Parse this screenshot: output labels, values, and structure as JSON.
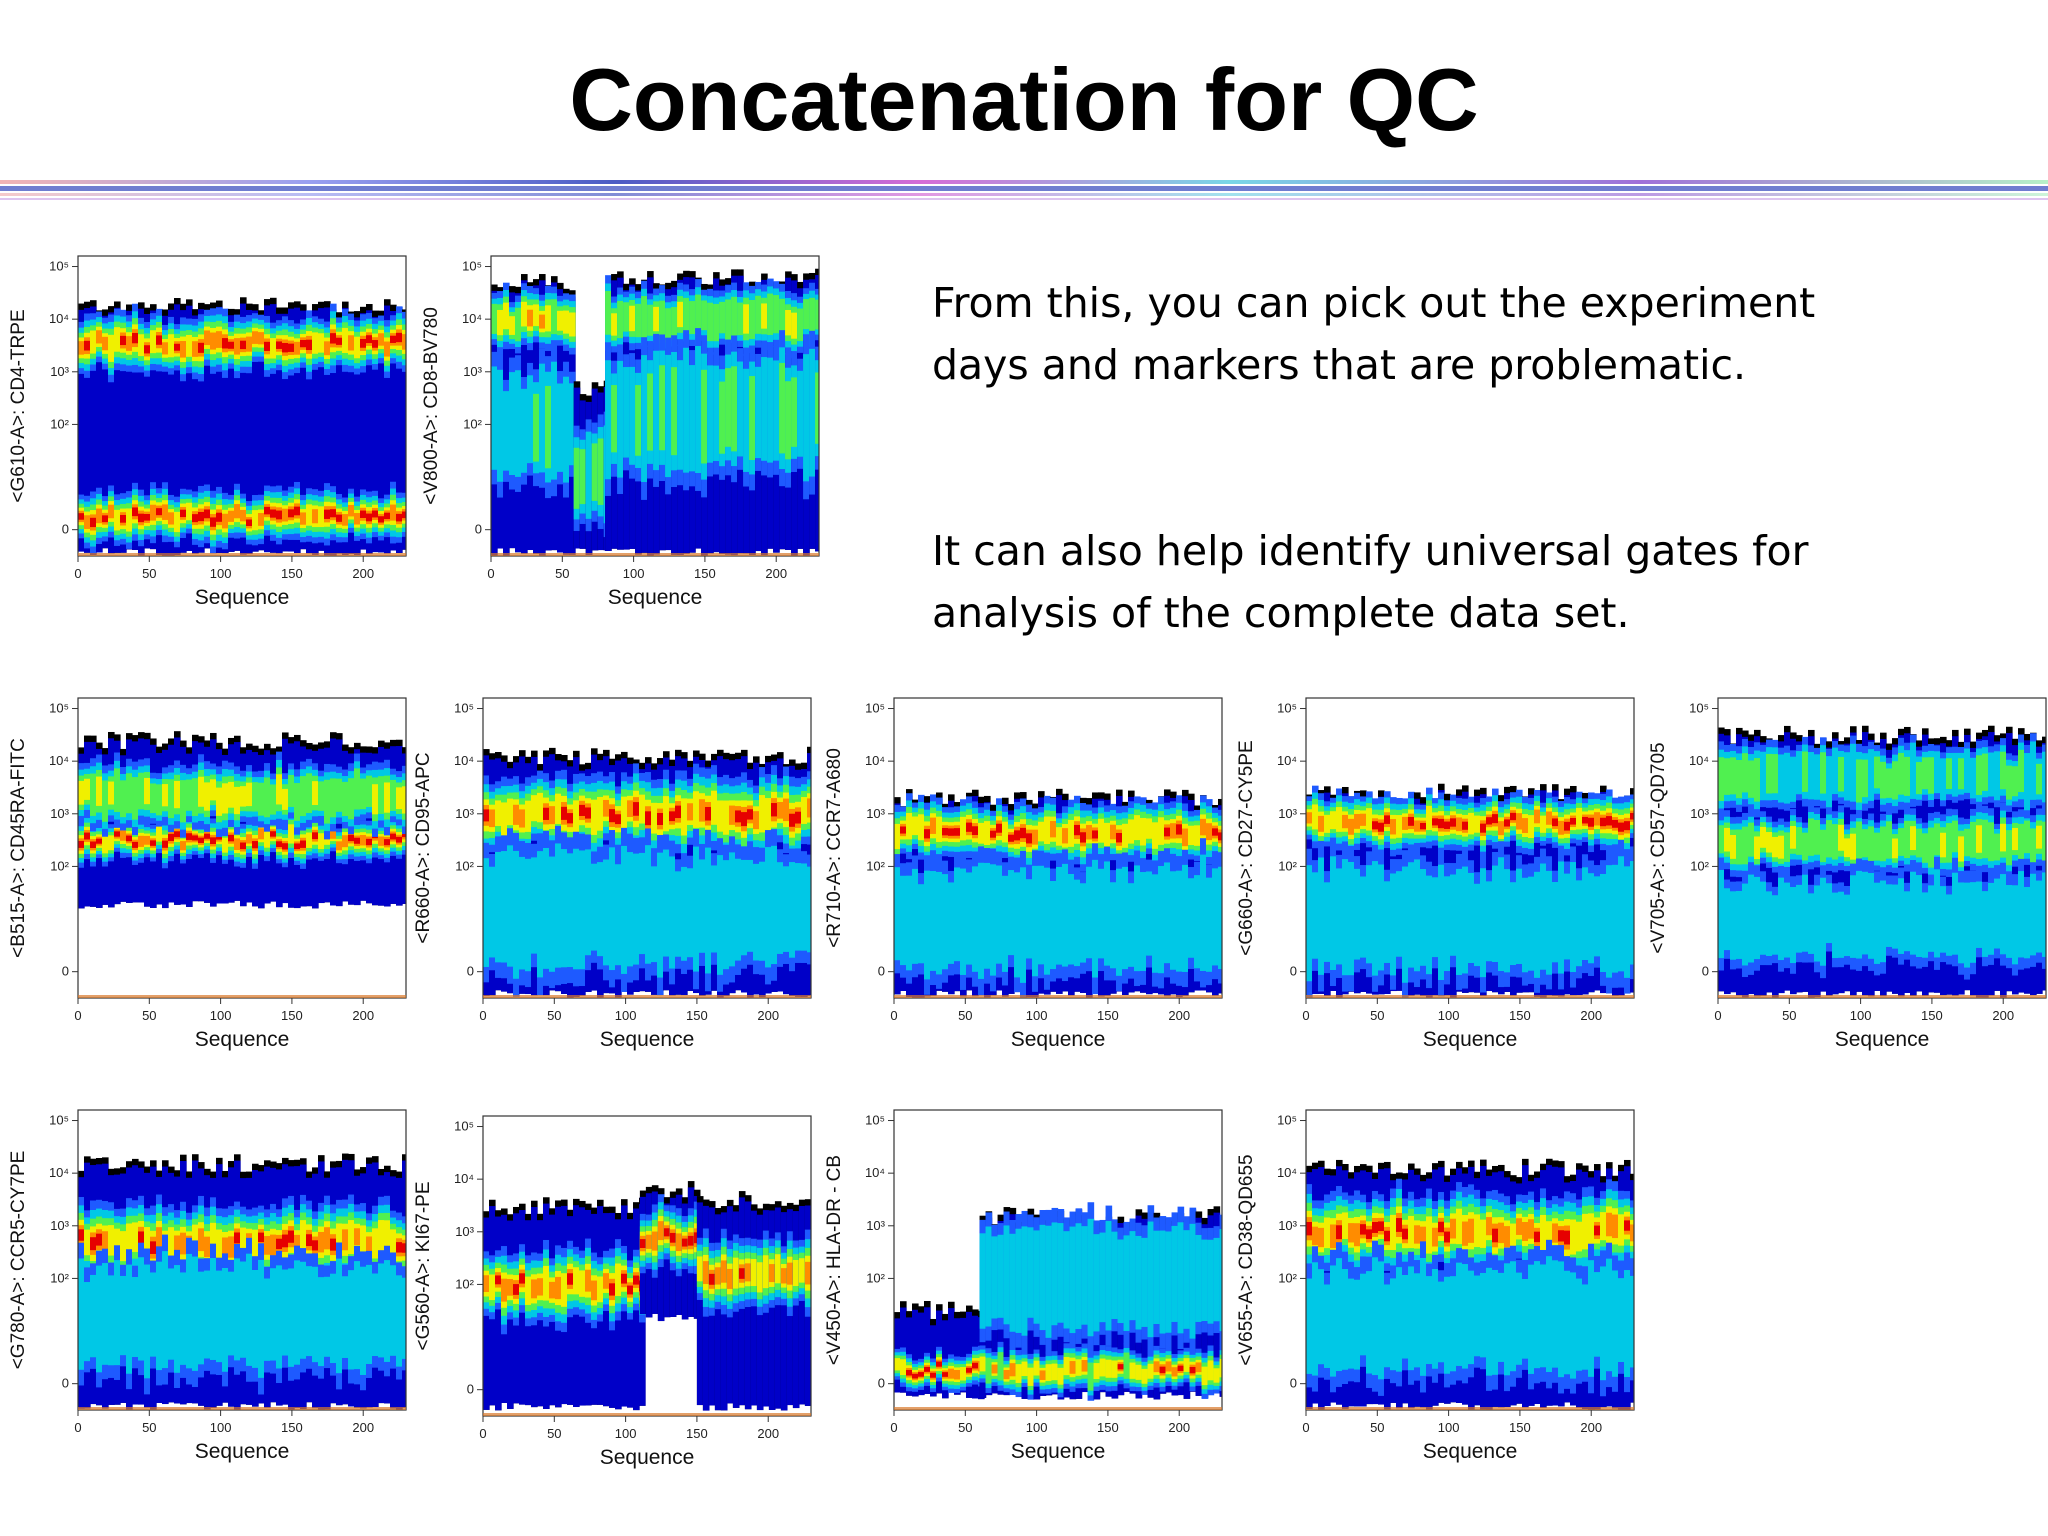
{
  "slide": {
    "title": "Concatenation for QC",
    "text1": "From this, you can pick out the experiment days and markers that are problematic.",
    "text2": "It can also help identify universal gates for analysis of the complete data set."
  },
  "colors": {
    "heat": [
      "#000000",
      "#0000c8",
      "#1e5aff",
      "#00c8e6",
      "#50f050",
      "#f0f000",
      "#ff8c00",
      "#e60000"
    ]
  },
  "chart_data": [
    {
      "type": "heatmap",
      "name": "CD4-TRPE",
      "xlabel": "Sequence",
      "ylabel": "<G610-A>: CD4-TRPE",
      "x_ticks": [
        "0",
        "50",
        "100",
        "150",
        "200"
      ],
      "y_ticks": [
        "0",
        "10²",
        "10³",
        "10⁴",
        "10⁵"
      ],
      "xlim": [
        0,
        230
      ],
      "ylim": [
        -0.5,
        5.2
      ],
      "segments": [
        {
          "x": [
            0,
            230
          ],
          "bands": [
            {
              "y": 3.55,
              "spread": 0.55,
              "peak": 0.95
            },
            {
              "y": 0.25,
              "spread": 0.5,
              "peak": 1.0
            }
          ],
          "top": 4.3,
          "bottom": -0.5
        }
      ]
    },
    {
      "type": "heatmap",
      "name": "CD8-BV780",
      "xlabel": "Sequence",
      "ylabel": "<V800-A>: CD8-BV780",
      "x_ticks": [
        "0",
        "50",
        "100",
        "150",
        "200"
      ],
      "y_ticks": [
        "0",
        "10²",
        "10³",
        "10⁴",
        "10⁵"
      ],
      "xlim": [
        0,
        230
      ],
      "ylim": [
        -0.5,
        5.2
      ],
      "segments": [
        {
          "x": [
            0,
            58
          ],
          "bands": [
            {
              "y": 4.0,
              "spread": 0.55,
              "peak": 0.8
            },
            {
              "y": 2.0,
              "spread": 1.2,
              "peak": 0.45
            }
          ],
          "top": 4.7,
          "bottom": -0.5
        },
        {
          "x": [
            58,
            80
          ],
          "bands": [
            {
              "y": 1.0,
              "spread": 1.0,
              "peak": 0.55
            }
          ],
          "top": 2.7,
          "bottom": -0.5
        },
        {
          "x": [
            80,
            230
          ],
          "bands": [
            {
              "y": 4.0,
              "spread": 0.6,
              "peak": 0.65
            },
            {
              "y": 2.2,
              "spread": 1.3,
              "peak": 0.45
            }
          ],
          "top": 4.8,
          "bottom": -0.5
        }
      ]
    },
    {
      "type": "heatmap",
      "name": "CD45RA-FITC",
      "xlabel": "Sequence",
      "ylabel": "<B515-A>: CD45RA-FITC",
      "x_ticks": [
        "0",
        "50",
        "100",
        "150",
        "200"
      ],
      "y_ticks": [
        "0",
        "10²",
        "10³",
        "10⁴",
        "10⁵"
      ],
      "xlim": [
        0,
        230
      ],
      "ylim": [
        -0.5,
        5.2
      ],
      "segments": [
        {
          "x": [
            0,
            230
          ],
          "bands": [
            {
              "y": 2.5,
              "spread": 0.4,
              "peak": 1.0
            },
            {
              "y": 3.35,
              "spread": 0.6,
              "peak": 0.7
            }
          ],
          "top": 4.4,
          "bottom": 1.2
        }
      ]
    },
    {
      "type": "heatmap",
      "name": "CD95-APC",
      "xlabel": "Sequence",
      "ylabel": "<R660-A>: CD95-APC",
      "x_ticks": [
        "0",
        "50",
        "100",
        "150",
        "200"
      ],
      "y_ticks": [
        "0",
        "10²",
        "10³",
        "10⁴",
        "10⁵"
      ],
      "xlim": [
        0,
        230
      ],
      "ylim": [
        -0.5,
        5.2
      ],
      "segments": [
        {
          "x": [
            0,
            230
          ],
          "bands": [
            {
              "y": 3.0,
              "spread": 0.75,
              "peak": 0.95
            },
            {
              "y": 1.2,
              "spread": 1.3,
              "peak": 0.35
            }
          ],
          "top": 4.1,
          "bottom": -0.5
        }
      ]
    },
    {
      "type": "heatmap",
      "name": "CCR7-A680",
      "xlabel": "Sequence",
      "ylabel": "<R710-A>: CCR7-A680",
      "x_ticks": [
        "0",
        "50",
        "100",
        "150",
        "200"
      ],
      "y_ticks": [
        "0",
        "10²",
        "10³",
        "10⁴",
        "10⁵"
      ],
      "xlim": [
        0,
        230
      ],
      "ylim": [
        -0.5,
        5.2
      ],
      "segments": [
        {
          "x": [
            0,
            230
          ],
          "bands": [
            {
              "y": 2.65,
              "spread": 0.55,
              "peak": 0.9
            },
            {
              "y": 1.0,
              "spread": 1.2,
              "peak": 0.35
            }
          ],
          "top": 3.3,
          "bottom": -0.5
        }
      ]
    },
    {
      "type": "heatmap",
      "name": "CD27-CY5PE",
      "xlabel": "Sequence",
      "ylabel": "<G660-A>: CD27-CY5PE",
      "x_ticks": [
        "0",
        "50",
        "100",
        "150",
        "200"
      ],
      "y_ticks": [
        "0",
        "10²",
        "10³",
        "10⁴",
        "10⁵"
      ],
      "xlim": [
        0,
        230
      ],
      "ylim": [
        -0.5,
        5.2
      ],
      "segments": [
        {
          "x": [
            0,
            230
          ],
          "bands": [
            {
              "y": 2.85,
              "spread": 0.5,
              "peak": 0.95
            },
            {
              "y": 1.0,
              "spread": 1.2,
              "peak": 0.4
            }
          ],
          "top": 3.4,
          "bottom": -0.5
        }
      ]
    },
    {
      "type": "heatmap",
      "name": "CD57-QD705",
      "xlabel": "Sequence",
      "ylabel": "<V705-A>: CD57-QD705",
      "x_ticks": [
        "0",
        "50",
        "100",
        "150",
        "200"
      ],
      "y_ticks": [
        "0",
        "10²",
        "10³",
        "10⁴",
        "10⁵"
      ],
      "xlim": [
        0,
        230
      ],
      "ylim": [
        -0.5,
        5.2
      ],
      "segments": [
        {
          "x": [
            0,
            230
          ],
          "bands": [
            {
              "y": 2.45,
              "spread": 0.55,
              "peak": 0.7
            },
            {
              "y": 3.7,
              "spread": 0.6,
              "peak": 0.5
            },
            {
              "y": 1.0,
              "spread": 0.9,
              "peak": 0.35
            }
          ],
          "top": 4.5,
          "bottom": -0.5
        }
      ]
    },
    {
      "type": "heatmap",
      "name": "CCR5-CY7PE",
      "xlabel": "Sequence",
      "ylabel": "<G780-A>: CCR5-CY7PE",
      "x_ticks": [
        "0",
        "50",
        "100",
        "150",
        "200"
      ],
      "y_ticks": [
        "0",
        "10²",
        "10³",
        "10⁴",
        "10⁵"
      ],
      "xlim": [
        0,
        230
      ],
      "ylim": [
        -0.5,
        5.2
      ],
      "segments": [
        {
          "x": [
            0,
            230
          ],
          "bands": [
            {
              "y": 2.7,
              "spread": 0.7,
              "peak": 0.9
            },
            {
              "y": 1.3,
              "spread": 1.2,
              "peak": 0.35
            }
          ],
          "top": 4.2,
          "bottom": -0.5
        }
      ]
    },
    {
      "type": "heatmap",
      "name": "KI67-PE",
      "xlabel": "Sequence",
      "ylabel": "<G560-A>: KI67-PE",
      "x_ticks": [
        "0",
        "50",
        "100",
        "150",
        "200"
      ],
      "y_ticks": [
        "0",
        "10²",
        "10³",
        "10⁴",
        "10⁵"
      ],
      "xlim": [
        0,
        230
      ],
      "ylim": [
        -0.5,
        5.2
      ],
      "segments": [
        {
          "x": [
            0,
            110
          ],
          "bands": [
            {
              "y": 2.0,
              "spread": 0.7,
              "peak": 0.9
            }
          ],
          "top": 3.5,
          "bottom": -0.4
        },
        {
          "x": [
            110,
            150
          ],
          "bands": [
            {
              "y": 2.9,
              "spread": 0.6,
              "peak": 0.95
            }
          ],
          "top": 3.8,
          "bottom": 1.3
        },
        {
          "x": [
            150,
            230
          ],
          "bands": [
            {
              "y": 2.2,
              "spread": 0.7,
              "peak": 0.85
            }
          ],
          "top": 3.6,
          "bottom": -0.4
        }
      ]
    },
    {
      "type": "heatmap",
      "name": "HLA-DR - CB",
      "xlabel": "Sequence",
      "ylabel": "<V450-A>: HLA-DR - CB",
      "x_ticks": [
        "0",
        "50",
        "100",
        "150",
        "200"
      ],
      "y_ticks": [
        "0",
        "10²",
        "10³",
        "10⁴",
        "10⁵"
      ],
      "xlim": [
        0,
        230
      ],
      "ylim": [
        -0.5,
        5.2
      ],
      "segments": [
        {
          "x": [
            0,
            60
          ],
          "bands": [
            {
              "y": 0.25,
              "spread": 0.35,
              "peak": 1.0
            }
          ],
          "top": 1.4,
          "bottom": -0.3
        },
        {
          "x": [
            60,
            230
          ],
          "bands": [
            {
              "y": 0.25,
              "spread": 0.4,
              "peak": 0.85
            },
            {
              "y": 2.0,
              "spread": 1.2,
              "peak": 0.4
            }
          ],
          "top": 3.2,
          "bottom": -0.3
        }
      ]
    },
    {
      "type": "heatmap",
      "name": "CD38-QD655",
      "xlabel": "Sequence",
      "ylabel": "<V655-A>: CD38-QD655",
      "x_ticks": [
        "0",
        "50",
        "100",
        "150",
        "200"
      ],
      "y_ticks": [
        "0",
        "10²",
        "10³",
        "10⁴",
        "10⁵"
      ],
      "xlim": [
        0,
        230
      ],
      "ylim": [
        -0.5,
        5.2
      ],
      "segments": [
        {
          "x": [
            0,
            230
          ],
          "bands": [
            {
              "y": 2.9,
              "spread": 0.75,
              "peak": 0.95
            },
            {
              "y": 1.2,
              "spread": 1.2,
              "peak": 0.35
            }
          ],
          "top": 4.1,
          "bottom": -0.5
        }
      ]
    }
  ]
}
